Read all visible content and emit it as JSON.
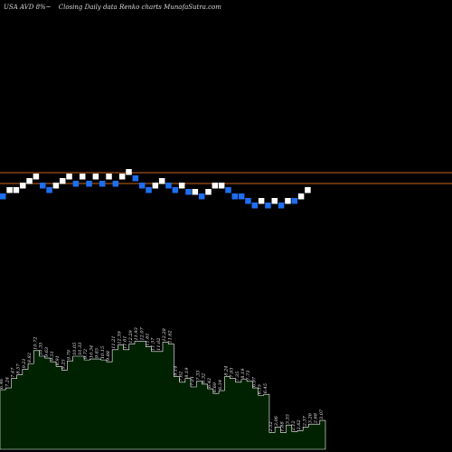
{
  "header": {
    "ticker": "USA AVD 8%~",
    "subtitle": "Closing Daily data  Renko  charts MunafaSutra.com"
  },
  "colors": {
    "background": "#000000",
    "up_brick": "#ffffff",
    "down_brick": "#1e6ff0",
    "reference_line": "#c8641e",
    "volume_fill": "#002200",
    "volume_edge": "#ffffff",
    "text": "#d8d8d8"
  },
  "chart_data": {
    "type": "renko",
    "grid": false,
    "reference_lines": [
      0,
      -1.2
    ],
    "bricks": [
      {
        "level": -1.7,
        "dir": "down"
      },
      {
        "level": -1.0,
        "dir": "up"
      },
      {
        "level": -1.0,
        "dir": "up"
      },
      {
        "level": -0.5,
        "dir": "up"
      },
      {
        "level": 0.0,
        "dir": "up"
      },
      {
        "level": 0.5,
        "dir": "up"
      },
      {
        "level": -0.5,
        "dir": "down"
      },
      {
        "level": -1.0,
        "dir": "down"
      },
      {
        "level": -0.5,
        "dir": "up"
      },
      {
        "level": 0.0,
        "dir": "up"
      },
      {
        "level": 0.5,
        "dir": "up"
      },
      {
        "level": -0.3,
        "dir": "down"
      },
      {
        "level": 0.5,
        "dir": "up"
      },
      {
        "level": -0.3,
        "dir": "down"
      },
      {
        "level": 0.5,
        "dir": "up"
      },
      {
        "level": -0.3,
        "dir": "down"
      },
      {
        "level": 0.5,
        "dir": "up"
      },
      {
        "level": -0.3,
        "dir": "down"
      },
      {
        "level": 0.5,
        "dir": "up"
      },
      {
        "level": 1.0,
        "dir": "up"
      },
      {
        "level": 0.3,
        "dir": "down"
      },
      {
        "level": -0.5,
        "dir": "down"
      },
      {
        "level": -1.0,
        "dir": "down"
      },
      {
        "level": -0.5,
        "dir": "up"
      },
      {
        "level": 0.0,
        "dir": "up"
      },
      {
        "level": -0.5,
        "dir": "down"
      },
      {
        "level": -1.0,
        "dir": "down"
      },
      {
        "level": -0.5,
        "dir": "up"
      },
      {
        "level": -1.2,
        "dir": "down"
      },
      {
        "level": -1.2,
        "dir": "up"
      },
      {
        "level": -1.7,
        "dir": "down"
      },
      {
        "level": -1.2,
        "dir": "up"
      },
      {
        "level": -0.5,
        "dir": "up"
      },
      {
        "level": -0.5,
        "dir": "up"
      },
      {
        "level": -1.0,
        "dir": "down"
      },
      {
        "level": -1.7,
        "dir": "down"
      },
      {
        "level": -1.7,
        "dir": "down"
      },
      {
        "level": -2.2,
        "dir": "down"
      },
      {
        "level": -2.7,
        "dir": "down"
      },
      {
        "level": -2.2,
        "dir": "up"
      },
      {
        "level": -2.7,
        "dir": "down"
      },
      {
        "level": -2.2,
        "dir": "up"
      },
      {
        "level": -2.7,
        "dir": "down"
      },
      {
        "level": -2.2,
        "dir": "up"
      },
      {
        "level": -2.2,
        "dir": "down"
      },
      {
        "level": -1.7,
        "dir": "up"
      },
      {
        "level": -1.0,
        "dir": "up"
      }
    ],
    "volume": [
      {
        "value": 6.4,
        "label": "6.46"
      },
      {
        "value": 6.6,
        "label": "7.24"
      },
      {
        "value": 7.6,
        "label": "7.47"
      },
      {
        "value": 8.0,
        "label": "8.57"
      },
      {
        "value": 8.6,
        "label": "9.21"
      },
      {
        "value": 9.2,
        "label": "8.82"
      },
      {
        "value": 10.6,
        "label": "10.72"
      },
      {
        "value": 10.0,
        "label": "10.35"
      },
      {
        "value": 9.8,
        "label": "9.63"
      },
      {
        "value": 9.4,
        "label": "9.51"
      },
      {
        "value": 8.9,
        "label": "8.91"
      },
      {
        "value": 8.5,
        "label": "9.25"
      },
      {
        "value": 9.5,
        "label": "9.79"
      },
      {
        "value": 10.0,
        "label": "10.05"
      },
      {
        "value": 10.0,
        "label": "10.33"
      },
      {
        "value": 9.6,
        "label": "9.72"
      },
      {
        "value": 9.7,
        "label": "10.34"
      },
      {
        "value": 9.7,
        "label": "9.85"
      },
      {
        "value": 9.6,
        "label": "10.15"
      },
      {
        "value": 9.4,
        "label": "9.88"
      },
      {
        "value": 10.7,
        "label": "11.21"
      },
      {
        "value": 11.2,
        "label": "12.39"
      },
      {
        "value": 10.7,
        "label": "11.61"
      },
      {
        "value": 11.3,
        "label": "12.29"
      },
      {
        "value": 11.6,
        "label": "11.93"
      },
      {
        "value": 11.6,
        "label": "12.07"
      },
      {
        "value": 11.0,
        "label": "11.61"
      },
      {
        "value": 10.5,
        "label": "11.57"
      },
      {
        "value": 10.5,
        "label": "11.02"
      },
      {
        "value": 11.5,
        "label": "12.28"
      },
      {
        "value": 11.3,
        "label": "11.62"
      },
      {
        "value": 7.8,
        "label": "8.14"
      },
      {
        "value": 7.2,
        "label": "7.62"
      },
      {
        "value": 7.6,
        "label": "8.19"
      },
      {
        "value": 6.7,
        "label": "7.21"
      },
      {
        "value": 7.3,
        "label": "7.33"
      },
      {
        "value": 7.0,
        "label": "6.32"
      },
      {
        "value": 6.5,
        "label": "6.42"
      },
      {
        "value": 6.0,
        "label": "6.69"
      },
      {
        "value": 6.3,
        "label": "6.34"
      },
      {
        "value": 7.8,
        "label": "8.24"
      },
      {
        "value": 7.6,
        "label": "7.93"
      },
      {
        "value": 7.2,
        "label": "7.35"
      },
      {
        "value": 7.5,
        "label": "8.19"
      },
      {
        "value": 7.3,
        "label": "7.73"
      },
      {
        "value": 6.6,
        "label": "6.97"
      },
      {
        "value": 5.8,
        "label": "6.35"
      },
      {
        "value": 5.9,
        "label": "6.45"
      },
      {
        "value": 1.8,
        "label": "2.52"
      },
      {
        "value": 2.4,
        "label": "3.06"
      },
      {
        "value": 1.8,
        "label": "1.88"
      },
      {
        "value": 2.6,
        "label": "3.35"
      },
      {
        "value": 1.9,
        "label": "2.12"
      },
      {
        "value": 2.0,
        "label": "2.62"
      },
      {
        "value": 2.4,
        "label": "2.37"
      },
      {
        "value": 2.7,
        "label": "3.26"
      },
      {
        "value": 2.7,
        "label": "2.68"
      },
      {
        "value": 3.1,
        "label": "3.07"
      }
    ]
  }
}
